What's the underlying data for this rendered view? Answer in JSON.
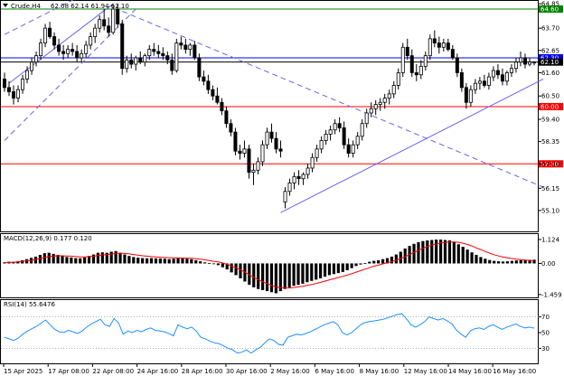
{
  "chart_data": {
    "type": "candlestick",
    "main": {
      "title": "Crude,H4",
      "ohlc_readout": "62.08 62.14 61.94 62.10",
      "ylim": [
        54.2,
        64.9
      ],
      "y_ticks": [
        64.85,
        63.7,
        62.65,
        61.6,
        60.5,
        59.4,
        58.35,
        57.3,
        56.15,
        55.1
      ],
      "y_tick_labels": [
        "64.85",
        "63.70",
        "62.65",
        "61.60",
        "60.50",
        "59.40",
        "58.35",
        "57.30",
        "56.15",
        "55.10"
      ],
      "h_levels": [
        {
          "price": 64.6,
          "label": "64.60",
          "color": "#008000"
        },
        {
          "price": 62.3,
          "label": "62.30",
          "color": "#0000ff"
        },
        {
          "price": 62.1,
          "label": "62.10",
          "color": "#000000"
        },
        {
          "price": 60.0,
          "label": "60.00",
          "color": "#ff0000"
        },
        {
          "price": 57.3,
          "label": "57.30",
          "color": "#ff0000"
        }
      ],
      "trendlines": [
        {
          "style": "solid",
          "color": "#6666ee",
          "from": [
            1,
            61.1
          ],
          "to": [
            24,
            64.85
          ]
        },
        {
          "style": "dashed",
          "color": "#6666ee",
          "from": [
            0,
            63.4
          ],
          "to": [
            38,
            67.5
          ]
        },
        {
          "style": "dashed",
          "color": "#6666ee",
          "from": [
            0,
            58.4
          ],
          "to": [
            29,
            64.6
          ]
        },
        {
          "style": "dashed",
          "color": "#6666ee",
          "from": [
            26,
            64.5
          ],
          "to": [
            119,
            56.2
          ]
        },
        {
          "style": "solid",
          "color": "#6666ee",
          "from": [
            61,
            55.0
          ],
          "to": [
            119,
            61.3
          ]
        }
      ],
      "candles": [
        [
          61.3,
          61.6,
          60.7,
          60.9
        ],
        [
          60.9,
          61.2,
          60.5,
          60.7
        ],
        [
          60.7,
          61.0,
          60.1,
          60.4
        ],
        [
          60.4,
          61.0,
          60.2,
          60.8
        ],
        [
          60.8,
          61.5,
          60.6,
          61.3
        ],
        [
          61.3,
          61.9,
          61.1,
          61.7
        ],
        [
          61.7,
          62.3,
          61.5,
          62.1
        ],
        [
          62.1,
          62.6,
          61.9,
          62.4
        ],
        [
          62.4,
          63.2,
          62.2,
          63.0
        ],
        [
          63.0,
          63.9,
          62.8,
          63.7
        ],
        [
          63.7,
          64.0,
          63.2,
          63.3
        ],
        [
          63.3,
          63.5,
          62.7,
          62.9
        ],
        [
          62.9,
          63.2,
          62.4,
          62.6
        ],
        [
          62.6,
          62.9,
          62.2,
          62.5
        ],
        [
          62.5,
          62.9,
          62.3,
          62.7
        ],
        [
          62.7,
          63.0,
          62.4,
          62.6
        ],
        [
          62.6,
          62.9,
          62.1,
          62.3
        ],
        [
          62.3,
          62.7,
          62.1,
          62.5
        ],
        [
          62.5,
          63.1,
          62.3,
          62.9
        ],
        [
          62.9,
          63.5,
          62.7,
          63.3
        ],
        [
          63.3,
          63.9,
          63.0,
          63.7
        ],
        [
          63.7,
          64.3,
          63.5,
          64.1
        ],
        [
          64.1,
          64.6,
          63.6,
          63.8
        ],
        [
          63.8,
          64.2,
          63.3,
          63.5
        ],
        [
          63.5,
          64.8,
          63.4,
          64.6
        ],
        [
          64.6,
          64.85,
          63.7,
          63.9
        ],
        [
          63.9,
          64.1,
          61.5,
          61.8
        ],
        [
          61.8,
          62.4,
          61.6,
          62.2
        ],
        [
          62.2,
          62.5,
          61.8,
          62.0
        ],
        [
          62.0,
          62.4,
          61.7,
          62.3
        ],
        [
          62.3,
          62.6,
          62.0,
          62.1
        ],
        [
          62.1,
          62.5,
          61.9,
          62.4
        ],
        [
          62.4,
          62.9,
          62.2,
          62.7
        ],
        [
          62.7,
          63.0,
          62.4,
          62.6
        ],
        [
          62.6,
          62.9,
          62.3,
          62.5
        ],
        [
          62.5,
          62.8,
          62.2,
          62.4
        ],
        [
          62.4,
          62.6,
          62.0,
          62.2
        ],
        [
          62.2,
          62.5,
          61.5,
          61.7
        ],
        [
          61.7,
          63.2,
          61.6,
          63.0
        ],
        [
          63.0,
          63.3,
          62.7,
          62.9
        ],
        [
          62.9,
          63.2,
          62.5,
          62.7
        ],
        [
          62.7,
          63.0,
          62.4,
          62.9
        ],
        [
          62.9,
          63.1,
          62.2,
          62.3
        ],
        [
          62.3,
          62.5,
          61.2,
          61.4
        ],
        [
          61.4,
          61.7,
          61.0,
          61.2
        ],
        [
          61.2,
          61.5,
          60.6,
          60.8
        ],
        [
          60.8,
          61.0,
          60.3,
          60.5
        ],
        [
          60.5,
          60.9,
          60.1,
          60.2
        ],
        [
          60.2,
          60.4,
          59.6,
          59.8
        ],
        [
          59.8,
          60.0,
          59.0,
          59.2
        ],
        [
          59.2,
          59.4,
          58.6,
          58.8
        ],
        [
          58.8,
          59.0,
          57.7,
          57.9
        ],
        [
          57.9,
          58.2,
          57.5,
          57.8
        ],
        [
          57.8,
          58.4,
          57.6,
          58.0
        ],
        [
          58.0,
          58.2,
          56.6,
          56.9
        ],
        [
          56.9,
          57.3,
          56.3,
          57.0
        ],
        [
          57.0,
          57.6,
          56.8,
          57.4
        ],
        [
          57.4,
          58.4,
          57.2,
          58.2
        ],
        [
          58.2,
          59.0,
          58.0,
          58.8
        ],
        [
          58.8,
          59.2,
          58.3,
          58.5
        ],
        [
          58.5,
          58.8,
          57.8,
          58.0
        ],
        [
          58.0,
          58.4,
          57.6,
          57.9
        ],
        [
          55.5,
          56.2,
          55.2,
          56.0
        ],
        [
          56.0,
          56.6,
          55.8,
          56.4
        ],
        [
          56.4,
          56.9,
          56.1,
          56.7
        ],
        [
          56.7,
          57.0,
          56.3,
          56.6
        ],
        [
          56.6,
          56.9,
          56.3,
          56.8
        ],
        [
          56.8,
          57.3,
          56.6,
          57.1
        ],
        [
          57.1,
          57.8,
          56.9,
          57.6
        ],
        [
          57.6,
          58.2,
          57.4,
          58.0
        ],
        [
          58.0,
          58.6,
          57.8,
          58.4
        ],
        [
          58.4,
          58.9,
          58.2,
          58.7
        ],
        [
          58.7,
          59.1,
          58.4,
          58.9
        ],
        [
          58.9,
          59.4,
          58.7,
          59.2
        ],
        [
          59.2,
          59.5,
          58.8,
          59.0
        ],
        [
          59.0,
          59.3,
          58.0,
          58.2
        ],
        [
          58.2,
          58.5,
          57.6,
          57.8
        ],
        [
          57.8,
          58.4,
          57.6,
          58.2
        ],
        [
          58.2,
          58.8,
          58.0,
          58.6
        ],
        [
          58.6,
          59.4,
          58.4,
          59.2
        ],
        [
          59.2,
          59.9,
          59.0,
          59.7
        ],
        [
          59.7,
          60.2,
          59.5,
          59.9
        ],
        [
          59.9,
          60.3,
          59.6,
          60.1
        ],
        [
          60.1,
          60.4,
          59.8,
          60.2
        ],
        [
          60.2,
          60.6,
          59.9,
          60.4
        ],
        [
          60.4,
          60.8,
          60.1,
          60.6
        ],
        [
          60.6,
          61.2,
          60.4,
          61.0
        ],
        [
          61.0,
          61.8,
          60.8,
          61.6
        ],
        [
          61.6,
          63.0,
          61.4,
          62.8
        ],
        [
          62.8,
          63.2,
          62.2,
          62.4
        ],
        [
          62.4,
          62.7,
          61.4,
          61.6
        ],
        [
          61.6,
          62.0,
          61.2,
          61.5
        ],
        [
          61.5,
          62.2,
          61.3,
          61.9
        ],
        [
          61.9,
          62.6,
          61.7,
          62.4
        ],
        [
          62.4,
          63.4,
          62.2,
          63.2
        ],
        [
          63.2,
          63.6,
          62.8,
          63.0
        ],
        [
          63.0,
          63.3,
          62.5,
          62.8
        ],
        [
          62.8,
          63.2,
          62.6,
          63.0
        ],
        [
          63.0,
          63.2,
          62.6,
          62.7
        ],
        [
          62.7,
          62.9,
          62.2,
          62.3
        ],
        [
          62.3,
          62.5,
          61.4,
          61.6
        ],
        [
          61.6,
          61.8,
          60.7,
          60.9
        ],
        [
          60.9,
          61.1,
          59.9,
          60.2
        ],
        [
          60.2,
          61.0,
          60.0,
          60.8
        ],
        [
          60.8,
          61.3,
          60.6,
          61.1
        ],
        [
          61.1,
          61.4,
          60.8,
          61.2
        ],
        [
          61.2,
          61.5,
          60.9,
          61.0
        ],
        [
          61.0,
          61.6,
          60.8,
          61.4
        ],
        [
          61.4,
          61.9,
          61.2,
          61.7
        ],
        [
          61.7,
          62.0,
          61.3,
          61.5
        ],
        [
          61.5,
          61.8,
          61.0,
          61.2
        ],
        [
          61.2,
          61.7,
          61.0,
          61.6
        ],
        [
          61.6,
          62.0,
          61.4,
          61.8
        ],
        [
          61.8,
          62.3,
          61.6,
          62.1
        ],
        [
          62.1,
          62.6,
          61.9,
          62.3
        ],
        [
          62.3,
          62.5,
          61.8,
          62.0
        ],
        [
          62.0,
          62.3,
          61.9,
          62.1
        ],
        [
          62.08,
          62.14,
          61.94,
          62.1
        ]
      ]
    },
    "macd": {
      "title": "MACD(12,26,9) 0.177 0.120",
      "ylim": [
        -1.55,
        1.25
      ],
      "y_ticks": [
        1.124,
        0.0,
        -1.459
      ],
      "y_tick_labels": [
        "1.124",
        "0.00",
        "-1.459"
      ],
      "signal_color": "#ff0000",
      "histogram": [
        0.05,
        0.08,
        0.06,
        0.1,
        0.15,
        0.2,
        0.26,
        0.32,
        0.4,
        0.48,
        0.5,
        0.45,
        0.4,
        0.35,
        0.3,
        0.28,
        0.25,
        0.24,
        0.28,
        0.35,
        0.42,
        0.5,
        0.52,
        0.5,
        0.55,
        0.58,
        0.5,
        0.42,
        0.35,
        0.3,
        0.27,
        0.25,
        0.24,
        0.25,
        0.24,
        0.23,
        0.22,
        0.2,
        0.22,
        0.24,
        0.23,
        0.22,
        0.2,
        0.15,
        0.1,
        0.05,
        0.01,
        -0.03,
        -0.08,
        -0.18,
        -0.28,
        -0.42,
        -0.55,
        -0.7,
        -0.85,
        -1.0,
        -1.12,
        -1.2,
        -1.25,
        -1.3,
        -1.35,
        -1.4,
        -1.3,
        -1.2,
        -1.12,
        -1.05,
        -1.0,
        -0.95,
        -0.88,
        -0.82,
        -0.76,
        -0.7,
        -0.62,
        -0.55,
        -0.5,
        -0.45,
        -0.4,
        -0.32,
        -0.22,
        -0.12,
        -0.05,
        0.02,
        0.08,
        0.12,
        0.15,
        0.2,
        0.25,
        0.32,
        0.42,
        0.55,
        0.7,
        0.82,
        0.92,
        1.0,
        1.05,
        1.08,
        1.1,
        1.12,
        1.12,
        1.1,
        1.08,
        1.0,
        0.9,
        0.78,
        0.65,
        0.52,
        0.4,
        0.3,
        0.22,
        0.16,
        0.12,
        0.1,
        0.09,
        0.1,
        0.12,
        0.14,
        0.15,
        0.16,
        0.17,
        0.177
      ],
      "signal": [
        0.04,
        0.05,
        0.06,
        0.07,
        0.09,
        0.12,
        0.15,
        0.19,
        0.23,
        0.28,
        0.32,
        0.35,
        0.36,
        0.36,
        0.35,
        0.34,
        0.32,
        0.31,
        0.31,
        0.32,
        0.34,
        0.37,
        0.4,
        0.42,
        0.44,
        0.47,
        0.48,
        0.47,
        0.45,
        0.42,
        0.39,
        0.36,
        0.34,
        0.32,
        0.31,
        0.29,
        0.28,
        0.27,
        0.26,
        0.26,
        0.25,
        0.25,
        0.24,
        0.22,
        0.2,
        0.17,
        0.14,
        0.1,
        0.07,
        0.02,
        -0.04,
        -0.12,
        -0.2,
        -0.3,
        -0.41,
        -0.53,
        -0.65,
        -0.76,
        -0.86,
        -0.95,
        -1.03,
        -1.1,
        -1.14,
        -1.15,
        -1.15,
        -1.13,
        -1.1,
        -1.07,
        -1.03,
        -0.99,
        -0.94,
        -0.89,
        -0.83,
        -0.77,
        -0.72,
        -0.66,
        -0.61,
        -0.55,
        -0.48,
        -0.41,
        -0.34,
        -0.27,
        -0.2,
        -0.13,
        -0.08,
        -0.02,
        0.03,
        0.09,
        0.15,
        0.23,
        0.32,
        0.42,
        0.52,
        0.62,
        0.71,
        0.79,
        0.86,
        0.91,
        0.96,
        0.99,
        1.01,
        1.01,
        0.99,
        0.95,
        0.89,
        0.82,
        0.73,
        0.65,
        0.56,
        0.48,
        0.41,
        0.35,
        0.3,
        0.26,
        0.23,
        0.2,
        0.18,
        0.16,
        0.14,
        0.12
      ]
    },
    "rsi": {
      "title": "RSI(14) 55.6476",
      "ylim": [
        12,
        88
      ],
      "y_ticks": [
        70,
        50,
        30
      ],
      "y_tick_labels": [
        "70",
        "50",
        "30"
      ],
      "line_color": "#1e90ff",
      "levels": [
        70,
        30
      ],
      "values": [
        44,
        42,
        40,
        43,
        48,
        52,
        55,
        58,
        62,
        66,
        60,
        54,
        51,
        50,
        53,
        51,
        49,
        52,
        57,
        61,
        64,
        67,
        60,
        58,
        68,
        62,
        48,
        52,
        50,
        53,
        51,
        54,
        56,
        53,
        52,
        51,
        49,
        46,
        60,
        57,
        55,
        57,
        52,
        44,
        42,
        39,
        37,
        36,
        33,
        30,
        28,
        24,
        25,
        28,
        24,
        28,
        31,
        37,
        42,
        40,
        35,
        34,
        44,
        46,
        48,
        47,
        49,
        51,
        54,
        57,
        60,
        62,
        64,
        60,
        50,
        47,
        50,
        55,
        60,
        63,
        64,
        65,
        66,
        67,
        69,
        71,
        73,
        74,
        68,
        60,
        57,
        60,
        64,
        70,
        68,
        66,
        68,
        65,
        61,
        53,
        48,
        44,
        52,
        55,
        56,
        54,
        58,
        60,
        57,
        54,
        57,
        59,
        61,
        58,
        56,
        57,
        55.6
      ],
      "time_labels": [
        "15 Apr 2025",
        "17 Apr 08:00",
        "22 Apr 08:00",
        "24 Apr 16:00",
        "28 Apr 16:00",
        "30 Apr 16:00",
        "2 May 16:00",
        "6 May 16:00",
        "8 May 16:00",
        "12 May 16:00",
        "14 May 16:00",
        "16 May 16:00"
      ]
    }
  }
}
